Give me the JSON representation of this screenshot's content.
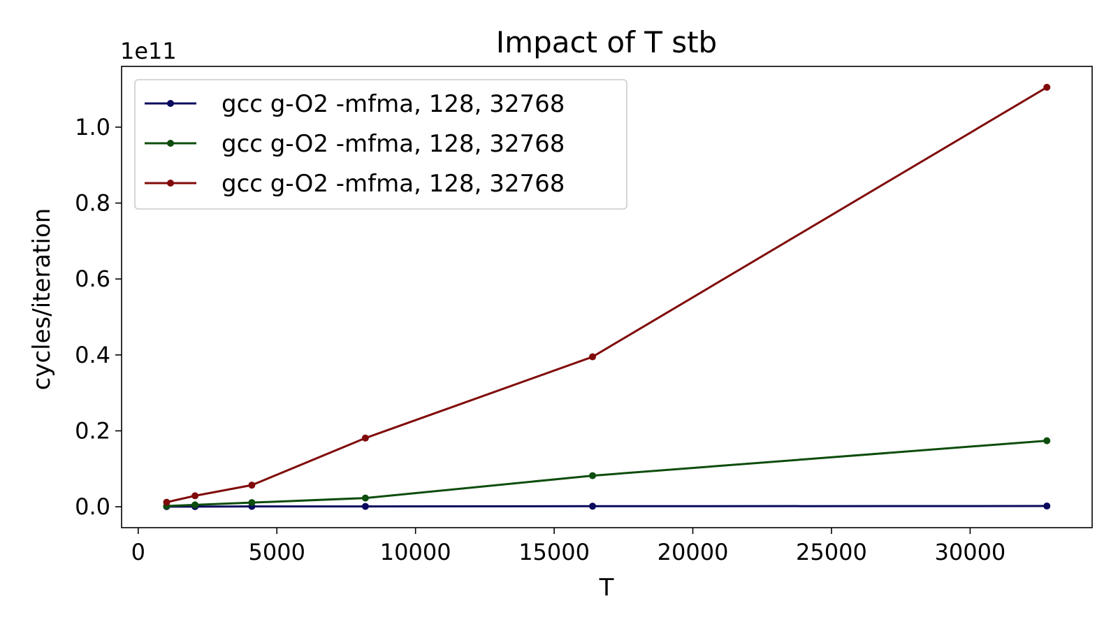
{
  "chart_data": {
    "type": "line",
    "title": "Impact of T stb",
    "xlabel": "T",
    "ylabel": "cycles/iteration",
    "y_offset_label": "1e11",
    "xlim": [
      -600,
      34400
    ],
    "ylim": [
      -0.055,
      1.16
    ],
    "x_ticks": [
      0,
      5000,
      10000,
      15000,
      20000,
      25000,
      30000
    ],
    "x_tick_labels": [
      "0",
      "5000",
      "10000",
      "15000",
      "20000",
      "25000",
      "30000"
    ],
    "y_ticks": [
      0.0,
      0.2,
      0.4,
      0.6,
      0.8,
      1.0
    ],
    "y_tick_labels": [
      "0.0",
      "0.2",
      "0.4",
      "0.6",
      "0.8",
      "1.0"
    ],
    "grid": false,
    "legend_position": "top-left",
    "x": [
      1024,
      2048,
      4096,
      8192,
      16384,
      32768
    ],
    "series": [
      {
        "name": "gcc g-O2 -mfma, 128, 32768",
        "color": "#0a0a5e",
        "values": [
          0.0005,
          0.0005,
          0.001,
          0.001,
          0.0015,
          0.002
        ]
      },
      {
        "name": "gcc g-O2 -mfma, 128, 32768",
        "color": "#0d4d0d",
        "values": [
          0.002,
          0.005,
          0.011,
          0.023,
          0.082,
          0.174
        ]
      },
      {
        "name": "gcc g-O2 -mfma, 128, 32768",
        "color": "#800a0a",
        "values": [
          0.012,
          0.029,
          0.057,
          0.181,
          0.395,
          1.105
        ]
      }
    ]
  }
}
